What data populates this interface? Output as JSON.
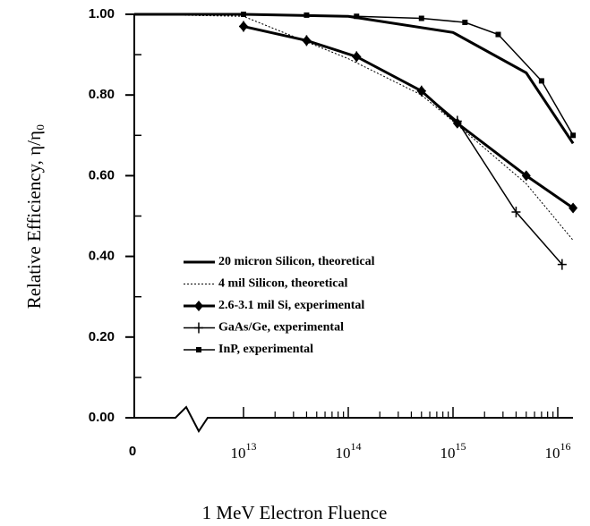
{
  "chart_data": {
    "type": "line",
    "xlabel": "1 MeV Electron Fluence",
    "ylabel": "Relative Efficiency, η/η₀",
    "xscale": "log",
    "zero_break": true,
    "xlim": [
      10000000000000,
      14000000000000000
    ],
    "xticks": [
      0,
      {
        "value": 10000000000000,
        "label": "10",
        "sup": "13"
      },
      {
        "value": 100000000000000,
        "label": "10",
        "sup": "14"
      },
      {
        "value": 1000000000000000,
        "label": "10",
        "sup": "15"
      },
      {
        "value": 10000000000000000,
        "label": "10",
        "sup": "16"
      }
    ],
    "ylim": [
      0,
      1
    ],
    "yticks": [
      {
        "value": 0,
        "label": "0.00"
      },
      {
        "value": 0.2,
        "label": "0.20"
      },
      {
        "value": 0.4,
        "label": "0.40"
      },
      {
        "value": 0.6,
        "label": "0.60"
      },
      {
        "value": 0.8,
        "label": "0.80"
      },
      {
        "value": 1,
        "label": "1.00"
      }
    ],
    "series": [
      {
        "name": "20 micron Silicon, theoretical",
        "color": "#000",
        "style": "thick",
        "marker": "none",
        "x": [
          0,
          10000000000000,
          100000000000000,
          1000000000000000,
          5000000000000000,
          14000000000000000
        ],
        "values": [
          1,
          1,
          0.995,
          0.955,
          0.855,
          0.68
        ]
      },
      {
        "name": "4 mil Silicon, theoretical",
        "color": "#000",
        "style": "dotted",
        "marker": "none",
        "x": [
          0,
          10000000000000,
          100000000000000,
          500000000000000,
          1000000000000000,
          5000000000000000,
          14000000000000000
        ],
        "values": [
          1,
          0.995,
          0.89,
          0.8,
          0.735,
          0.58,
          0.44
        ]
      },
      {
        "name": "2.6-3.1 mil Si, experimental",
        "color": "#000",
        "style": "thick",
        "marker": "diamond",
        "x": [
          10000000000000,
          40000000000000,
          120000000000000,
          500000000000000,
          1100000000000000,
          5000000000000000,
          14000000000000000
        ],
        "values": [
          0.97,
          0.935,
          0.895,
          0.81,
          0.73,
          0.6,
          0.52
        ]
      },
      {
        "name": "GaAs/Ge, experimental",
        "color": "#000",
        "style": "solid",
        "marker": "plus",
        "x": [
          10000000000000,
          40000000000000,
          120000000000000,
          500000000000000,
          1100000000000000,
          4000000000000000,
          11000000000000000
        ],
        "values": [
          0.97,
          0.935,
          0.895,
          0.81,
          0.735,
          0.51,
          0.38
        ]
      },
      {
        "name": "InP, experimental",
        "color": "#000",
        "style": "solid",
        "marker": "square",
        "x": [
          10000000000000,
          40000000000000,
          120000000000000,
          500000000000000,
          1300000000000000,
          2700000000000000,
          7000000000000000,
          14000000000000000
        ],
        "values": [
          1,
          0.998,
          0.995,
          0.99,
          0.98,
          0.95,
          0.835,
          0.7
        ]
      }
    ]
  }
}
